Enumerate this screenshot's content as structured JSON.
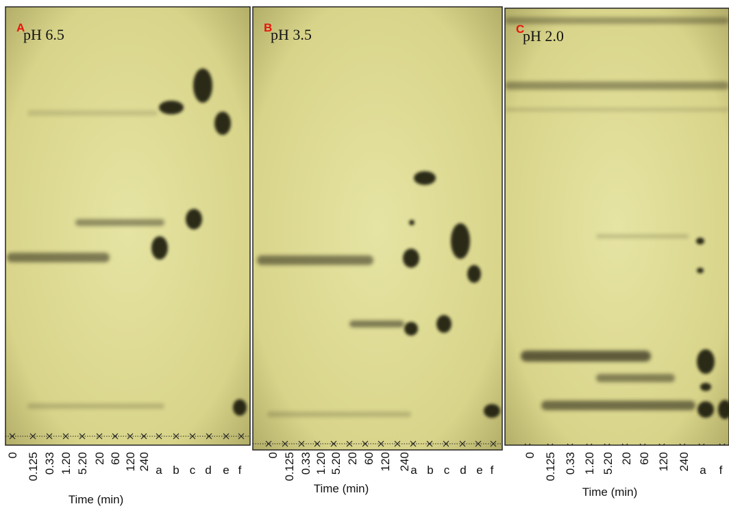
{
  "panels": [
    {
      "letter": "A",
      "condition": "pH 6.5",
      "time_labels": [
        "0",
        "0.125",
        "0.33",
        "1.20",
        "5.20",
        "20",
        "60",
        "120",
        "240"
      ],
      "lane_letters": [
        "a",
        "b",
        "c",
        "d",
        "e",
        "f"
      ],
      "axis_title": "Time (min)"
    },
    {
      "letter": "B",
      "condition": "pH 3.5",
      "time_labels": [
        "0",
        "0.125",
        "0.33",
        "1.20",
        "5.20",
        "20",
        "60",
        "120",
        "240"
      ],
      "lane_letters": [
        "a",
        "b",
        "c",
        "d",
        "e",
        "f"
      ],
      "axis_title": "Time (min)"
    },
    {
      "letter": "C",
      "condition": "pH 2.0",
      "time_labels": [
        "0",
        "0.125",
        "0.33",
        "1.20",
        "5.20",
        "20",
        "60",
        "120",
        "240"
      ],
      "lane_letters": [
        "a",
        "f"
      ],
      "axis_title": "Time (min)"
    }
  ]
}
